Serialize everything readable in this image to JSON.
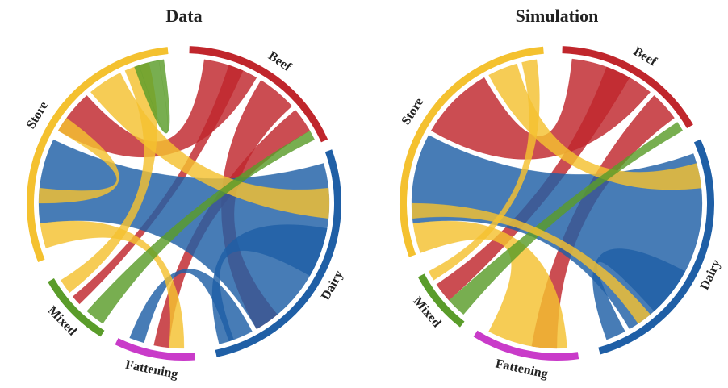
{
  "diagrams": [
    {
      "title": "Data",
      "groups": [
        {
          "label": "Beef",
          "color": "#c0262c"
        },
        {
          "label": "Dairy",
          "color": "#1f5fa6"
        },
        {
          "label": "Fattening",
          "color": "#c93bc9"
        },
        {
          "label": "Mixed",
          "color": "#5a9c2a"
        },
        {
          "label": "Store",
          "color": "#f4c12f"
        }
      ]
    },
    {
      "title": "Simulation",
      "groups": [
        {
          "label": "Beef",
          "color": "#c0262c"
        },
        {
          "label": "Dairy",
          "color": "#1f5fa6"
        },
        {
          "label": "Fattening",
          "color": "#c93bc9"
        },
        {
          "label": "Mixed",
          "color": "#5a9c2a"
        },
        {
          "label": "Store",
          "color": "#f4c12f"
        }
      ]
    }
  ]
}
